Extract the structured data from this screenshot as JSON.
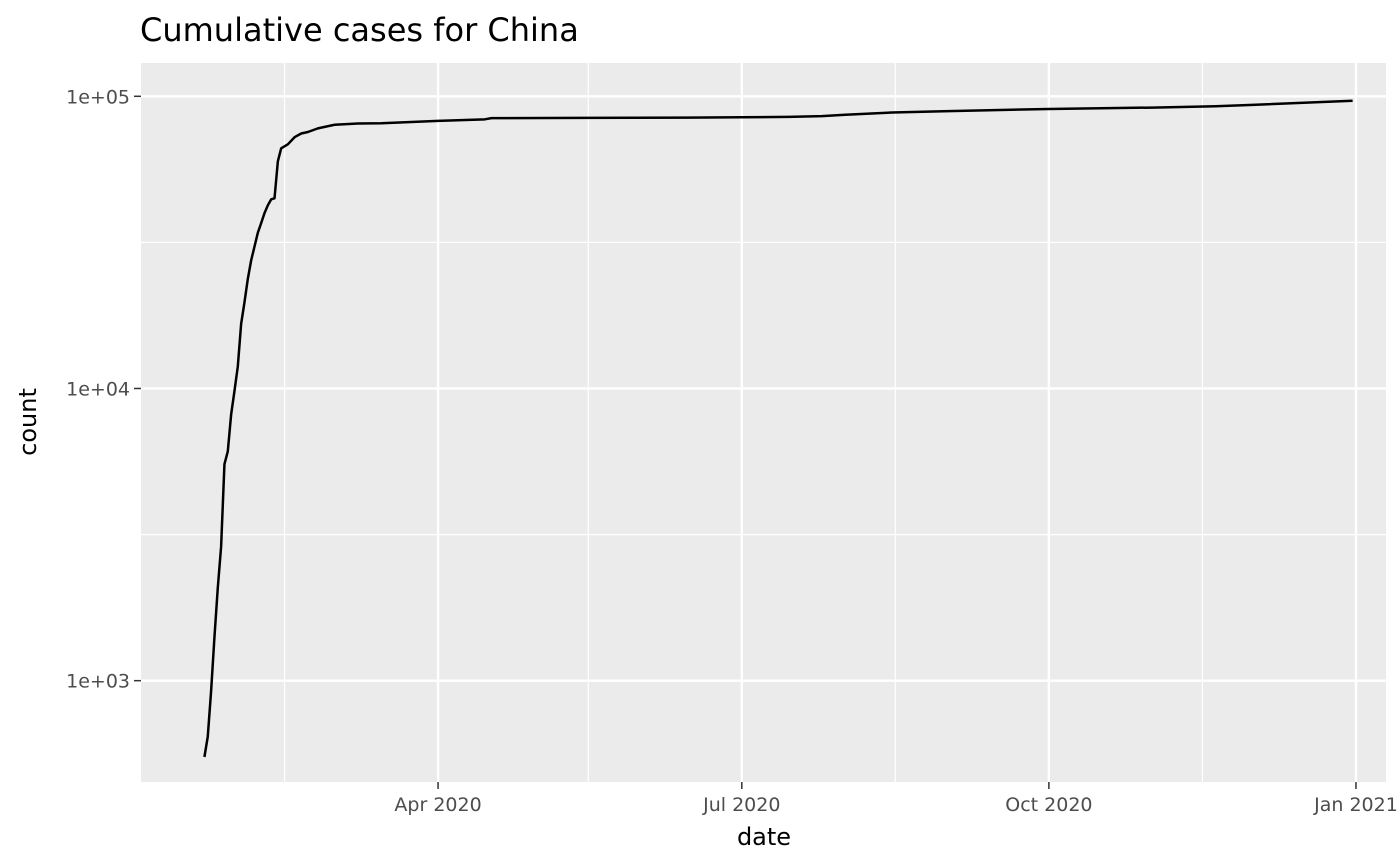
{
  "chart_data": {
    "type": "line",
    "title": "Cumulative cases for China",
    "xlabel": "date",
    "ylabel": "count",
    "y_scale": "log10",
    "ylim": [
      450,
      130000
    ],
    "xlim": [
      "2020-01-03",
      "2021-01-10"
    ],
    "grid": true,
    "legend": "none",
    "colors": {
      "panel": "#EBEBEB",
      "grid": "#FFFFFF",
      "line": "#000000"
    },
    "x_ticks": [
      {
        "date": "2020-04-01",
        "label": "Apr 2020"
      },
      {
        "date": "2020-07-01",
        "label": "Jul 2020"
      },
      {
        "date": "2020-10-01",
        "label": "Oct 2020"
      },
      {
        "date": "2021-01-01",
        "label": "Jan 2021"
      }
    ],
    "x_minor_breaks": [
      "2020-02-15",
      "2020-05-16",
      "2020-08-16",
      "2020-11-16"
    ],
    "y_ticks": [
      {
        "value": 1000,
        "label": "1e+03"
      },
      {
        "value": 10000,
        "label": "1e+04"
      },
      {
        "value": 100000,
        "label": "1e+05"
      }
    ],
    "y_minor_breaks": [
      3162,
      31623
    ],
    "series": [
      {
        "x": [
          "2020-01-22",
          "2020-01-23",
          "2020-01-24",
          "2020-01-25",
          "2020-01-26",
          "2020-01-27",
          "2020-01-28",
          "2020-01-29",
          "2020-01-30",
          "2020-01-31",
          "2020-02-01",
          "2020-02-02",
          "2020-02-03",
          "2020-02-04",
          "2020-02-05",
          "2020-02-06",
          "2020-02-07",
          "2020-02-08",
          "2020-02-09",
          "2020-02-10",
          "2020-02-11",
          "2020-02-12",
          "2020-02-13",
          "2020-02-14",
          "2020-02-16",
          "2020-02-18",
          "2020-02-20",
          "2020-02-22",
          "2020-02-25",
          "2020-03-01",
          "2020-03-08",
          "2020-03-15",
          "2020-04-01",
          "2020-04-15",
          "2020-04-17",
          "2020-05-15",
          "2020-06-15",
          "2020-07-01",
          "2020-07-15",
          "2020-07-25",
          "2020-08-01",
          "2020-08-15",
          "2020-09-01",
          "2020-10-01",
          "2020-11-01",
          "2020-11-20",
          "2020-12-01",
          "2020-12-31"
        ],
        "y": [
          548,
          643,
          920,
          1406,
          2075,
          2877,
          5509,
          6087,
          8141,
          9802,
          11891,
          16630,
          19716,
          23707,
          27440,
          30587,
          34110,
          36814,
          39829,
          42354,
          44386,
          44759,
          59895,
          66358,
          68500,
          72436,
          74578,
          75472,
          77658,
          79932,
          80735,
          80860,
          82361,
          83403,
          84200,
          84367,
          84500,
          84800,
          85000,
          85500,
          86500,
          88000,
          89000,
          90500,
          91500,
          92500,
          93500,
          96500
        ]
      }
    ]
  }
}
